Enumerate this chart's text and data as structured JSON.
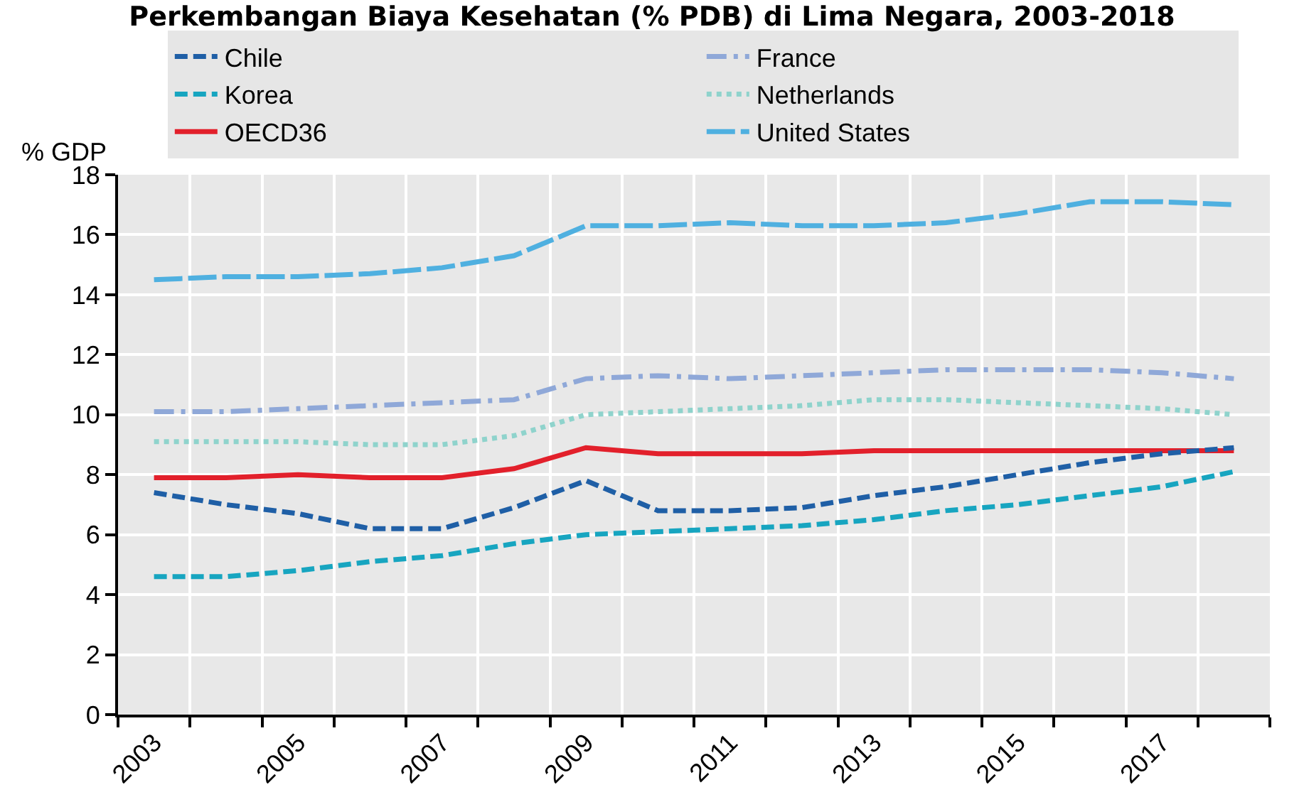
{
  "chart_data": {
    "type": "line",
    "title": "Perkembangan Biaya Kesehatan (% PDB) di Lima Negara, 2003-2018",
    "ylabel": "% GDP",
    "categories": [
      "2003",
      null,
      "2005",
      null,
      "2007",
      null,
      "2009",
      null,
      "2011",
      null,
      "2013",
      null,
      "2015",
      null,
      "2017",
      null
    ],
    "ylim": [
      0,
      18
    ],
    "yticks": [
      0,
      2,
      4,
      6,
      8,
      10,
      12,
      14,
      16,
      18
    ],
    "grid": true,
    "legend": "top",
    "marker": "none",
    "series": [
      {
        "name": "Chile",
        "color": "#1f5fa6",
        "line_style": "dashed",
        "values": [
          7.4,
          7.0,
          6.7,
          6.2,
          6.2,
          6.9,
          7.8,
          6.8,
          6.8,
          6.9,
          7.3,
          7.6,
          8.0,
          8.4,
          8.7,
          8.9
        ]
      },
      {
        "name": "France",
        "color": "#8fa8d8",
        "line_style": "dashdot",
        "values": [
          10.1,
          10.1,
          10.2,
          10.3,
          10.4,
          10.5,
          11.2,
          11.3,
          11.2,
          11.3,
          11.4,
          11.5,
          11.5,
          11.5,
          11.4,
          11.2
        ]
      },
      {
        "name": "Korea",
        "color": "#17a5c0",
        "line_style": "dashed",
        "values": [
          4.6,
          4.6,
          4.8,
          5.1,
          5.3,
          5.7,
          6.0,
          6.1,
          6.2,
          6.3,
          6.5,
          6.8,
          7.0,
          7.3,
          7.6,
          8.1
        ]
      },
      {
        "name": "Netherlands",
        "color": "#8fd3cc",
        "line_style": "dotted",
        "values": [
          9.1,
          9.1,
          9.1,
          9.0,
          9.0,
          9.3,
          10.0,
          10.1,
          10.2,
          10.3,
          10.5,
          10.5,
          10.4,
          10.3,
          10.2,
          10.0
        ]
      },
      {
        "name": "OECD36",
        "color": "#e2202b",
        "line_style": "solid",
        "values": [
          7.9,
          7.9,
          8.0,
          7.9,
          7.9,
          8.2,
          8.9,
          8.7,
          8.7,
          8.7,
          8.8,
          8.8,
          8.8,
          8.8,
          8.8,
          8.8
        ]
      },
      {
        "name": "United States",
        "color": "#4fb0e0",
        "line_style": "longdash",
        "values": [
          14.5,
          14.6,
          14.6,
          14.7,
          14.9,
          15.3,
          16.3,
          16.3,
          16.4,
          16.3,
          16.3,
          16.4,
          16.7,
          17.1,
          17.1,
          17.0
        ]
      }
    ]
  }
}
